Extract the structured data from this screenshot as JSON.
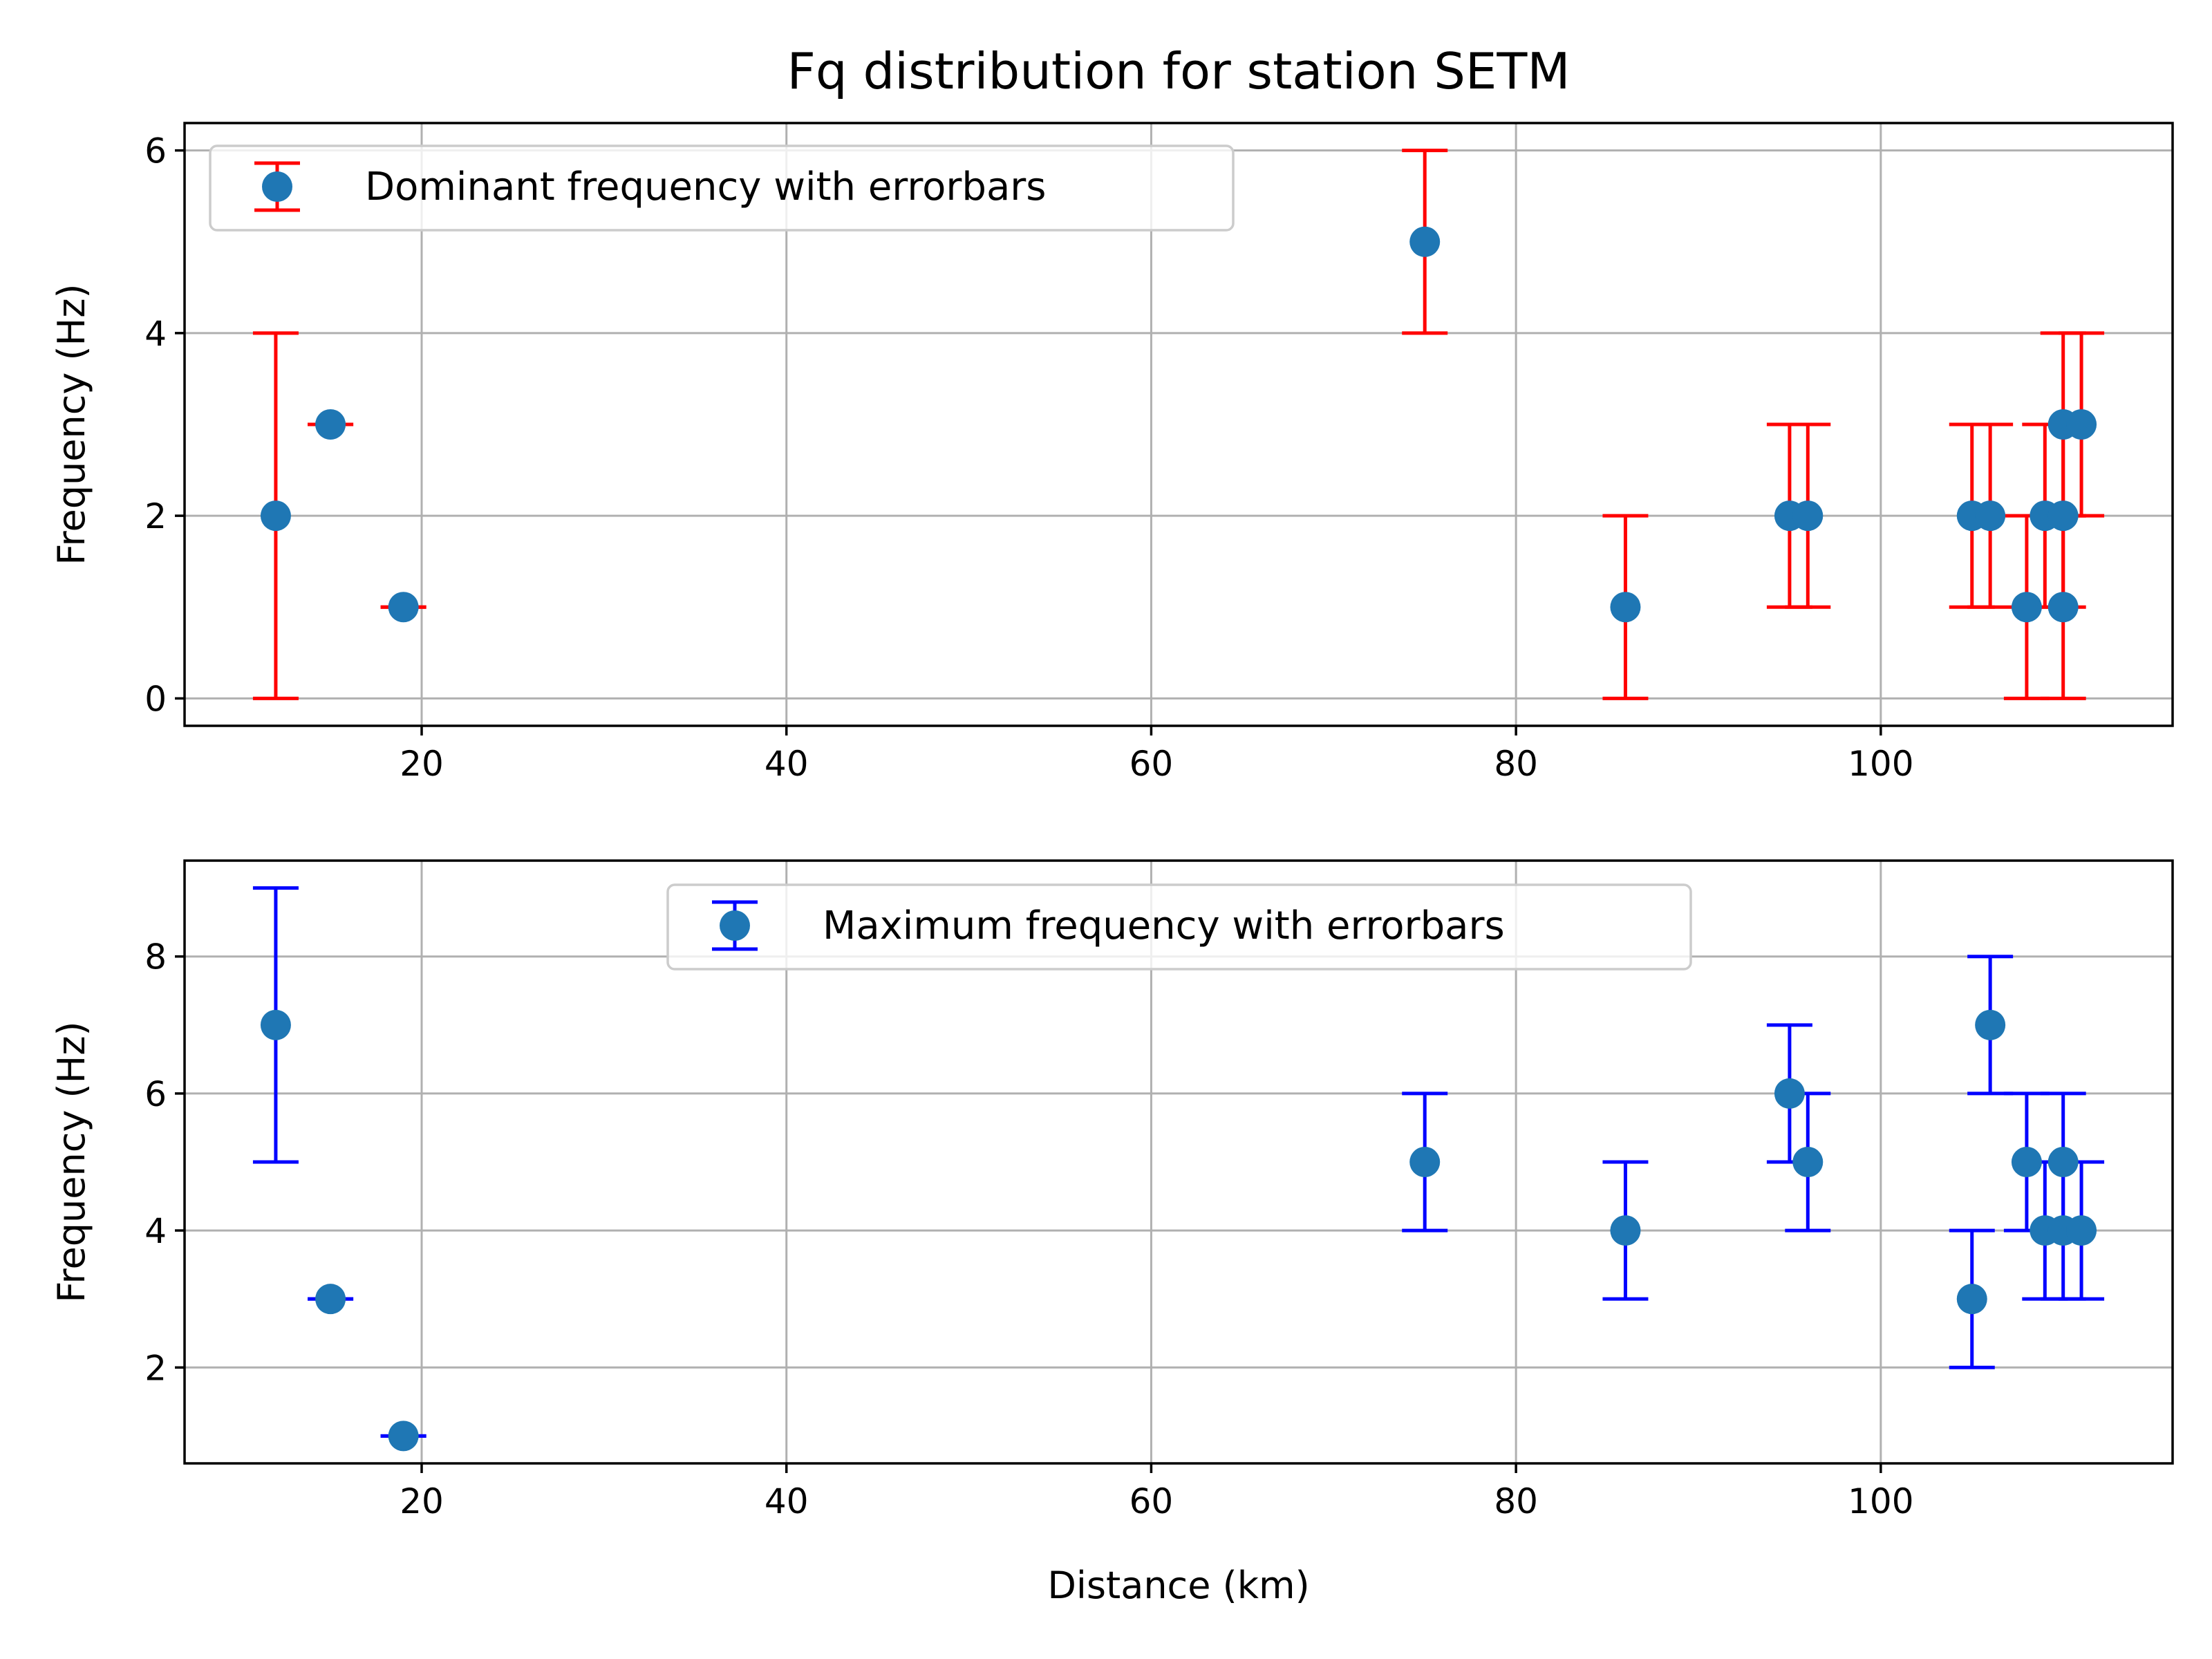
{
  "chart_data": [
    {
      "type": "scatter",
      "title": "Fq distribution for station SETM",
      "xlabel": "",
      "ylabel": "Frequency (Hz)",
      "xlim": [
        7,
        116
      ],
      "ylim": [
        -0.3,
        6.3
      ],
      "xticks": [
        20,
        40,
        60,
        80,
        100
      ],
      "yticks": [
        0,
        2,
        4,
        6
      ],
      "grid": true,
      "legend_position": "upper-left",
      "series": [
        {
          "name": "Dominant frequency with errorbars",
          "marker_color": "#1f77b4",
          "errorbar_color": "#ff0000",
          "points": [
            {
              "x": 12,
              "y": 2,
              "err": 2
            },
            {
              "x": 15,
              "y": 3,
              "err": 0
            },
            {
              "x": 19,
              "y": 1,
              "err": 0
            },
            {
              "x": 75,
              "y": 5,
              "err": 1
            },
            {
              "x": 86,
              "y": 1,
              "err": 1
            },
            {
              "x": 95,
              "y": 2,
              "err": 1
            },
            {
              "x": 96,
              "y": 2,
              "err": 1
            },
            {
              "x": 105,
              "y": 2,
              "err": 1
            },
            {
              "x": 106,
              "y": 2,
              "err": 1
            },
            {
              "x": 108,
              "y": 1,
              "err": 1
            },
            {
              "x": 109,
              "y": 2,
              "err": 1
            },
            {
              "x": 110,
              "y": 2,
              "err": 1
            },
            {
              "x": 110,
              "y": 1,
              "err": 1
            },
            {
              "x": 110,
              "y": 3,
              "err": 1
            },
            {
              "x": 111,
              "y": 3,
              "err": 1
            }
          ]
        }
      ]
    },
    {
      "type": "scatter",
      "title": "",
      "xlabel": "Distance (km)",
      "ylabel": "Frequency (Hz)",
      "xlim": [
        7,
        116
      ],
      "ylim": [
        0.6,
        9.4
      ],
      "xticks": [
        20,
        40,
        60,
        80,
        100
      ],
      "yticks": [
        2,
        4,
        6,
        8
      ],
      "grid": true,
      "legend_position": "upper-center",
      "series": [
        {
          "name": "Maximum frequency with errorbars",
          "marker_color": "#1f77b4",
          "errorbar_color": "#0000ff",
          "points": [
            {
              "x": 12,
              "y": 7,
              "err": 2
            },
            {
              "x": 15,
              "y": 3,
              "err": 0
            },
            {
              "x": 19,
              "y": 1,
              "err": 0
            },
            {
              "x": 75,
              "y": 5,
              "err": 1
            },
            {
              "x": 86,
              "y": 4,
              "err": 1
            },
            {
              "x": 95,
              "y": 6,
              "err": 1
            },
            {
              "x": 96,
              "y": 5,
              "err": 1
            },
            {
              "x": 105,
              "y": 3,
              "err": 1
            },
            {
              "x": 106,
              "y": 7,
              "err": 1
            },
            {
              "x": 108,
              "y": 5,
              "err": 1
            },
            {
              "x": 109,
              "y": 4,
              "err": 1
            },
            {
              "x": 110,
              "y": 5,
              "err": 1
            },
            {
              "x": 110,
              "y": 4,
              "err": 1
            },
            {
              "x": 111,
              "y": 4,
              "err": 1
            }
          ]
        }
      ]
    }
  ]
}
